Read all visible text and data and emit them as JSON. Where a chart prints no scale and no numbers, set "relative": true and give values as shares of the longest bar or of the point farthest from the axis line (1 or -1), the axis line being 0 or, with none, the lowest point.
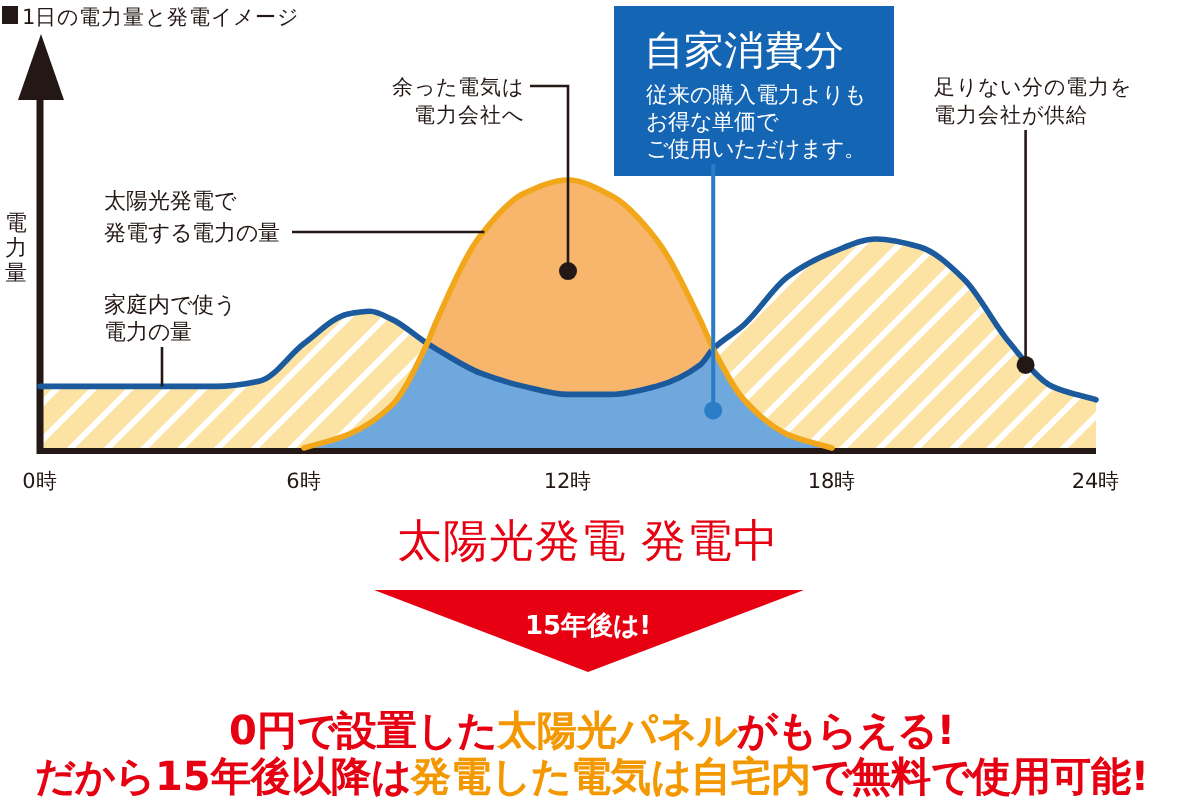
{
  "chart_data": {
    "type": "area",
    "title": "1日の電力量と発電イメージ",
    "ylabel": "電力量",
    "relative": true,
    "xlim": [
      0,
      24
    ],
    "xticks": [
      {
        "value": 0,
        "label": "0時"
      },
      {
        "value": 6,
        "label": "6時"
      },
      {
        "value": 12,
        "label": "12時"
      },
      {
        "value": 18,
        "label": "18時"
      },
      {
        "value": 24,
        "label": "24時"
      }
    ],
    "series": [
      {
        "name": "家庭内で使う電力の量",
        "color": "#1b5a9d",
        "x": [
          0,
          2,
          4,
          5,
          6,
          7,
          7.5,
          8,
          8.8,
          9,
          10,
          11,
          12,
          13,
          14,
          15,
          15.3,
          16,
          17,
          18,
          19,
          20,
          21,
          22,
          23,
          24
        ],
        "values": [
          0.23,
          0.23,
          0.23,
          0.25,
          0.39,
          0.5,
          0.51,
          0.48,
          0.39,
          0.37,
          0.28,
          0.23,
          0.2,
          0.2,
          0.23,
          0.31,
          0.37,
          0.46,
          0.64,
          0.73,
          0.78,
          0.75,
          0.63,
          0.4,
          0.23,
          0.18
        ]
      },
      {
        "name": "太陽光発電で発電する電力の量",
        "color": "#f2a71b",
        "x": [
          6,
          7,
          8,
          8.8,
          9,
          10,
          11,
          12,
          13,
          14,
          15,
          15.3,
          16,
          17,
          18
        ],
        "values": [
          0,
          0.05,
          0.16,
          0.39,
          0.47,
          0.79,
          0.95,
          1,
          0.94,
          0.78,
          0.48,
          0.37,
          0.18,
          0.05,
          0
        ]
      }
    ],
    "annotations": [
      {
        "text": "余った電気は電力会社へ",
        "x": 12,
        "y": 0.66
      },
      "自家消費分",
      {
        "text": "従来の購入電力よりもお得な単価でご使用いただけます。",
        "x": 15.3,
        "y": 0.14
      },
      {
        "text": "足りない分の電力を電力会社が供給",
        "x": 22.4,
        "y": 0.31
      },
      "太陽光発電 発電中",
      "15年後は!",
      "0円で設置した",
      "太陽光パネル",
      "がもらえる!",
      "だから15年後以降は",
      "発電した電気は自宅内",
      "で無料で使用可能!"
    ]
  }
}
